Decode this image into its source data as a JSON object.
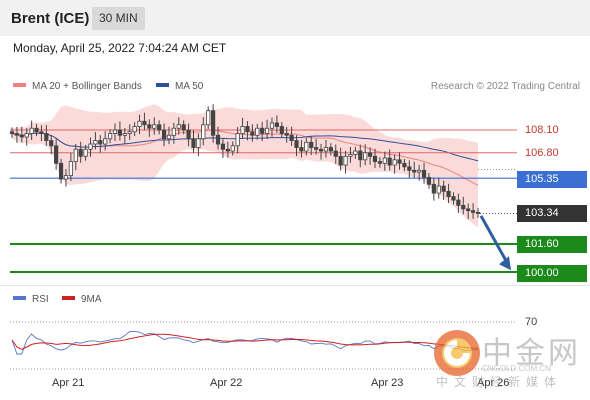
{
  "header": {
    "title": "Brent (ICE)",
    "timeframe": "30 MIN"
  },
  "timestamp": "Monday, April 25, 2022 7:04:24 AM CET",
  "legend": [
    {
      "label": "MA 20 + Bollinger Bands",
      "color": "#f08080"
    },
    {
      "label": "MA 50",
      "color": "#2e4f9a"
    }
  ],
  "copyright": "Research © 2022 Trading Central",
  "colors": {
    "resistance": "#e06666",
    "pivot": "#3b6fd4",
    "support": "#1b8a1b",
    "candle_up": "#555555",
    "candle_down": "#555555",
    "bollinger_fill": "#fbdada",
    "ma20": "#f08080",
    "ma50": "#2e4f9a",
    "arrow": "#2f5f9e",
    "current_price_bg": "#333333",
    "rsi": "#5577cc",
    "rsi_ma": "#cc2222"
  },
  "levels": [
    {
      "price": "108.10",
      "type": "resistance"
    },
    {
      "price": "106.80",
      "type": "resistance"
    },
    {
      "price": "105.35",
      "type": "pivot"
    },
    {
      "price": "103.34",
      "type": "current"
    },
    {
      "price": "101.60",
      "type": "support"
    },
    {
      "price": "100.00",
      "type": "support"
    }
  ],
  "rsi_panel": {
    "legend": [
      {
        "label": "RSI",
        "color": "#5577cc"
      },
      {
        "label": "9MA",
        "color": "#cc2222"
      }
    ],
    "level_label": "70"
  },
  "x_axis": [
    "Apr 21",
    "Apr 22",
    "Apr 23",
    "Apr 26"
  ],
  "watermark": {
    "brand": "中金网",
    "url": "CNGOLD.COM.CN",
    "subtitle": "中文财经新媒体"
  },
  "chart_data": {
    "type": "candlestick",
    "symbol": "Brent (ICE)",
    "interval": "30 MIN",
    "price_min": 100.0,
    "price_max": 109.5,
    "close": [
      107.9,
      107.8,
      107.7,
      107.9,
      108.2,
      108.0,
      107.9,
      107.5,
      107.2,
      106.2,
      105.3,
      105.5,
      106.3,
      107.0,
      106.6,
      107.0,
      107.3,
      107.5,
      107.3,
      107.6,
      107.9,
      108.1,
      107.8,
      107.9,
      108.0,
      108.3,
      108.6,
      108.4,
      108.2,
      108.4,
      108.1,
      107.6,
      107.8,
      108.2,
      108.4,
      108.1,
      107.6,
      107.1,
      107.6,
      108.4,
      109.2,
      107.8,
      107.3,
      107.0,
      106.9,
      107.2,
      107.9,
      108.3,
      108.0,
      107.8,
      108.2,
      107.9,
      108.2,
      108.5,
      108.3,
      107.9,
      107.8,
      107.5,
      107.1,
      106.9,
      107.4,
      107.1,
      107.0,
      106.9,
      107.1,
      106.9,
      106.6,
      106.1,
      106.6,
      106.7,
      106.9,
      106.4,
      106.8,
      106.6,
      106.3,
      106.2,
      106.5,
      106.1,
      106.4,
      106.2,
      106.0,
      105.8,
      105.7,
      105.8,
      105.4,
      105.0,
      104.5,
      104.9,
      104.6,
      104.3,
      104.1,
      103.8,
      103.6,
      103.5,
      103.4,
      103.34
    ],
    "rsi_level": 70
  }
}
